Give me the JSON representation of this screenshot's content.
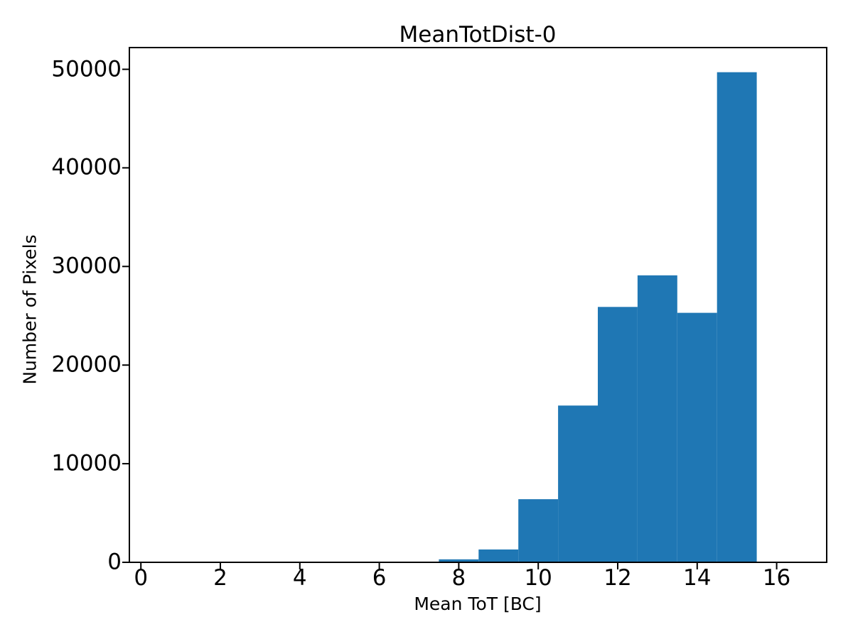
{
  "chart_data": {
    "type": "histogram",
    "title": "MeanTotDist-0",
    "xlabel": "Mean ToT [BC]",
    "ylabel": "Number of Pixels",
    "bar_color": "#1f77b4",
    "axis_color": "#000000",
    "background_color": "#ffffff",
    "grid": false,
    "legend": false,
    "xlim": [
      -0.29,
      17.26
    ],
    "ylim": [
      0,
      52200
    ],
    "xticks": [
      0,
      2,
      4,
      6,
      8,
      10,
      12,
      14,
      16
    ],
    "yticks": [
      0,
      10000,
      20000,
      30000,
      40000,
      50000
    ],
    "xtick_labels": [
      "0",
      "2",
      "4",
      "6",
      "8",
      "10",
      "12",
      "14",
      "16"
    ],
    "ytick_labels": [
      "0",
      "10000",
      "20000",
      "30000",
      "40000",
      "50000"
    ],
    "bin_width": 1.0,
    "bin_edges": [
      7.5,
      8.5,
      9.5,
      10.5,
      11.5,
      12.5,
      13.5,
      14.5,
      15.5
    ],
    "counts": [
      300,
      1300,
      6400,
      15900,
      25900,
      29100,
      25300,
      49700
    ]
  }
}
